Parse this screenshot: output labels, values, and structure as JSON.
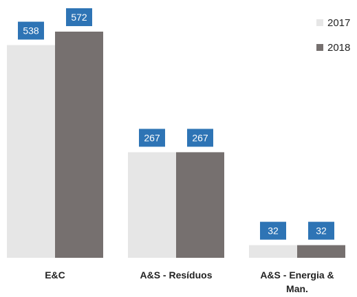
{
  "chart_data": {
    "type": "bar",
    "categories": [
      "E&C",
      "A&S - Resíduos",
      "A&S - Energia & Man."
    ],
    "series": [
      {
        "name": "2017",
        "values": [
          538,
          267,
          32
        ],
        "color": "#e6e6e6"
      },
      {
        "name": "2018",
        "values": [
          572,
          267,
          32
        ],
        "color": "#76706f"
      }
    ],
    "ylim": [
      0,
      572
    ],
    "grid": false,
    "legend_position": "top-right",
    "label_color": "#2e74b5"
  }
}
